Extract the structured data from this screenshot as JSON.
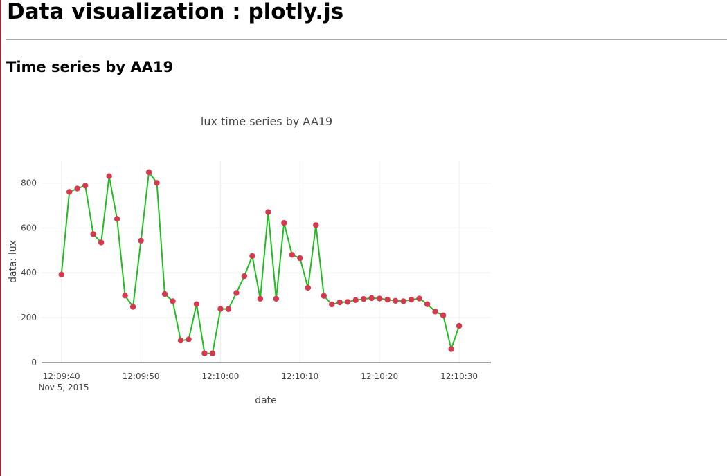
{
  "page": {
    "title": "Data visualization : plotly.js",
    "section_title": "Time series by AA19"
  },
  "colors": {
    "line": "#1fbd1f",
    "marker": "#d43a4f",
    "grid": "#eeeeee",
    "axis": "#444444"
  },
  "chart_data": {
    "type": "line",
    "mode": "lines+markers",
    "title": "lux time series by AA19",
    "xlabel": "date",
    "ylabel": "data: lux",
    "x_date_label": "Nov 5, 2015",
    "xlim": [
      "12:09:37.5",
      "12:10:34"
    ],
    "ylim": [
      0,
      900
    ],
    "grid": true,
    "x_ticks": [
      "12:09:40",
      "12:09:50",
      "12:10:00",
      "12:10:10",
      "12:10:20",
      "12:10:30"
    ],
    "y_ticks": [
      0,
      200,
      400,
      600,
      800
    ],
    "series": [
      {
        "x": [
          "12:09:40",
          "12:09:41",
          "12:09:42",
          "12:09:43",
          "12:09:44",
          "12:09:45",
          "12:09:46",
          "12:09:47",
          "12:09:48",
          "12:09:49",
          "12:09:50",
          "12:09:51",
          "12:09:52",
          "12:09:53",
          "12:09:54",
          "12:09:55",
          "12:09:56",
          "12:09:57",
          "12:09:58",
          "12:09:59",
          "12:10:00",
          "12:10:01",
          "12:10:02",
          "12:10:03",
          "12:10:04",
          "12:10:05",
          "12:10:06",
          "12:10:07",
          "12:10:08",
          "12:10:09",
          "12:10:10",
          "12:10:11",
          "12:10:12",
          "12:10:13",
          "12:10:14",
          "12:10:15",
          "12:10:16",
          "12:10:17",
          "12:10:18",
          "12:10:19",
          "12:10:20",
          "12:10:21",
          "12:10:22",
          "12:10:23",
          "12:10:24",
          "12:10:25",
          "12:10:26",
          "12:10:27",
          "12:10:28",
          "12:10:29",
          "12:10:30"
        ],
        "values": [
          392,
          760,
          775,
          788,
          572,
          535,
          830,
          640,
          298,
          248,
          543,
          848,
          800,
          305,
          273,
          98,
          103,
          260,
          41,
          41,
          239,
          238,
          310,
          385,
          475,
          284,
          670,
          284,
          622,
          480,
          465,
          333,
          612,
          297,
          259,
          268,
          270,
          278,
          283,
          287,
          285,
          280,
          275,
          273,
          280,
          285,
          260,
          227,
          210,
          60,
          163
        ]
      }
    ]
  }
}
